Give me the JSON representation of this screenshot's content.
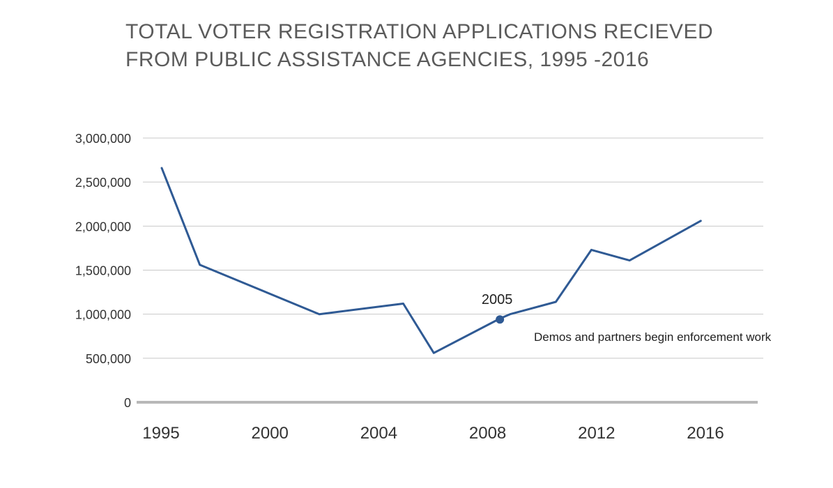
{
  "chart_data": {
    "type": "line",
    "title_lines": [
      "TOTAL VOTER REGISTRATION APPLICATIONS RECIEVED",
      "FROM PUBLIC ASSISTANCE AGENCIES, 1995 -2016"
    ],
    "xlabel": "",
    "ylabel": "",
    "xlim": [
      1995,
      2017.7
    ],
    "ylim": [
      0,
      3000000
    ],
    "x_ticks": [
      1995,
      2000,
      2004,
      2008,
      2012,
      2016
    ],
    "y_ticks": [
      0,
      500000,
      1000000,
      1500000,
      2000000,
      2500000,
      3000000
    ],
    "y_tick_labels": [
      "0",
      "500,000",
      "1,000,000",
      "1,500,000",
      "2,000,000",
      "2,500,000",
      "3,000,000"
    ],
    "grid": true,
    "series": [
      {
        "color": "#2f5a94",
        "points": [
          {
            "x": 1995.0,
            "y": 2660000
          },
          {
            "x": 1996.5,
            "y": 1560000
          },
          {
            "x": 2001.2,
            "y": 1000000
          },
          {
            "x": 2004.5,
            "y": 1120000
          },
          {
            "x": 2005.7,
            "y": 560000
          },
          {
            "x": 2008.3,
            "y": 950000
          },
          {
            "x": 2008.7,
            "y": 1000000
          },
          {
            "x": 2010.5,
            "y": 1140000
          },
          {
            "x": 2011.9,
            "y": 1730000
          },
          {
            "x": 2013.4,
            "y": 1610000
          },
          {
            "x": 2016.2,
            "y": 2060000
          }
        ]
      }
    ],
    "annotation": {
      "x": 2008.3,
      "y": 940000,
      "label_top": "2005",
      "label_right": "Demos and partners begin enforcement work"
    }
  }
}
